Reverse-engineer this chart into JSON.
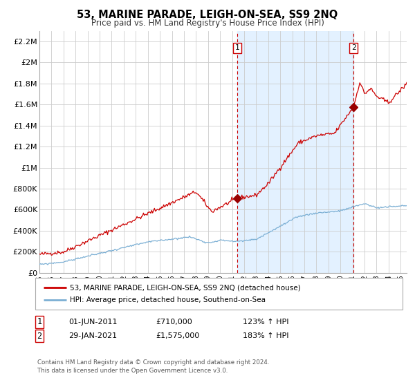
{
  "title": "53, MARINE PARADE, LEIGH-ON-SEA, SS9 2NQ",
  "subtitle": "Price paid vs. HM Land Registry's House Price Index (HPI)",
  "legend_line1": "53, MARINE PARADE, LEIGH-ON-SEA, SS9 2NQ (detached house)",
  "legend_line2": "HPI: Average price, detached house, Southend-on-Sea",
  "annotation1_label": "1",
  "annotation1_date": "01-JUN-2011",
  "annotation1_price": "£710,000",
  "annotation1_hpi": "123% ↑ HPI",
  "annotation2_label": "2",
  "annotation2_date": "29-JAN-2021",
  "annotation2_price": "£1,575,000",
  "annotation2_hpi": "183% ↑ HPI",
  "footer_line1": "Contains HM Land Registry data © Crown copyright and database right 2024.",
  "footer_line2": "This data is licensed under the Open Government Licence v3.0.",
  "hpi_color": "#7bafd4",
  "house_color": "#cc0000",
  "marker_color": "#990000",
  "vline_color": "#cc0000",
  "bg_shaded_color": "#ddeeff",
  "grid_color": "#cccccc",
  "ylim": [
    0,
    2300000
  ],
  "yticks": [
    0,
    200000,
    400000,
    600000,
    800000,
    1000000,
    1200000,
    1400000,
    1600000,
    1800000,
    2000000,
    2200000
  ],
  "ytick_labels": [
    "£0",
    "£200K",
    "£400K",
    "£600K",
    "£800K",
    "£1M",
    "£1.2M",
    "£1.4M",
    "£1.6M",
    "£1.8M",
    "£2M",
    "£2.2M"
  ],
  "xlim": [
    1995,
    2025.5
  ],
  "sale1_year": 2011.42,
  "sale1_value": 710000,
  "sale2_year": 2021.08,
  "sale2_value": 1575000
}
